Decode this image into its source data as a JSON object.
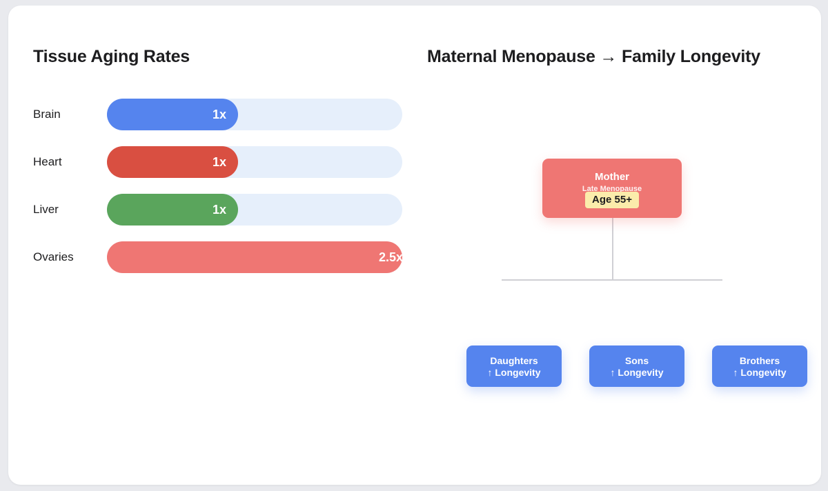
{
  "left_panel": {
    "title": "Tissue Aging Rates"
  },
  "right_panel": {
    "title": "Maternal Menopause → Family Longevity"
  },
  "colors": {
    "track": "#e6effb",
    "brain": "#5584ee",
    "heart": "#d94f41",
    "liver": "#5aa55c",
    "ovaries": "#ef7673",
    "child_node": "#5584ee",
    "badge": "#fbecab"
  },
  "chart_data": {
    "type": "bar",
    "orientation": "horizontal",
    "title": "Tissue Aging Rates",
    "categories": [
      "Brain",
      "Heart",
      "Liver",
      "Ovaries"
    ],
    "values": [
      1,
      1,
      1,
      2.5
    ],
    "value_labels": [
      "1x",
      "1x",
      "1x",
      "2.5x"
    ],
    "xlim": [
      0,
      2.5
    ]
  },
  "diagram": {
    "root": {
      "title": "Mother",
      "subtitle": "Late Menopause",
      "badge": "Age 55+"
    },
    "children": [
      {
        "title": "Daughters",
        "effect": "↑ Longevity"
      },
      {
        "title": "Sons",
        "effect": "↑ Longevity"
      },
      {
        "title": "Brothers",
        "effect": "↑ Longevity"
      }
    ]
  }
}
